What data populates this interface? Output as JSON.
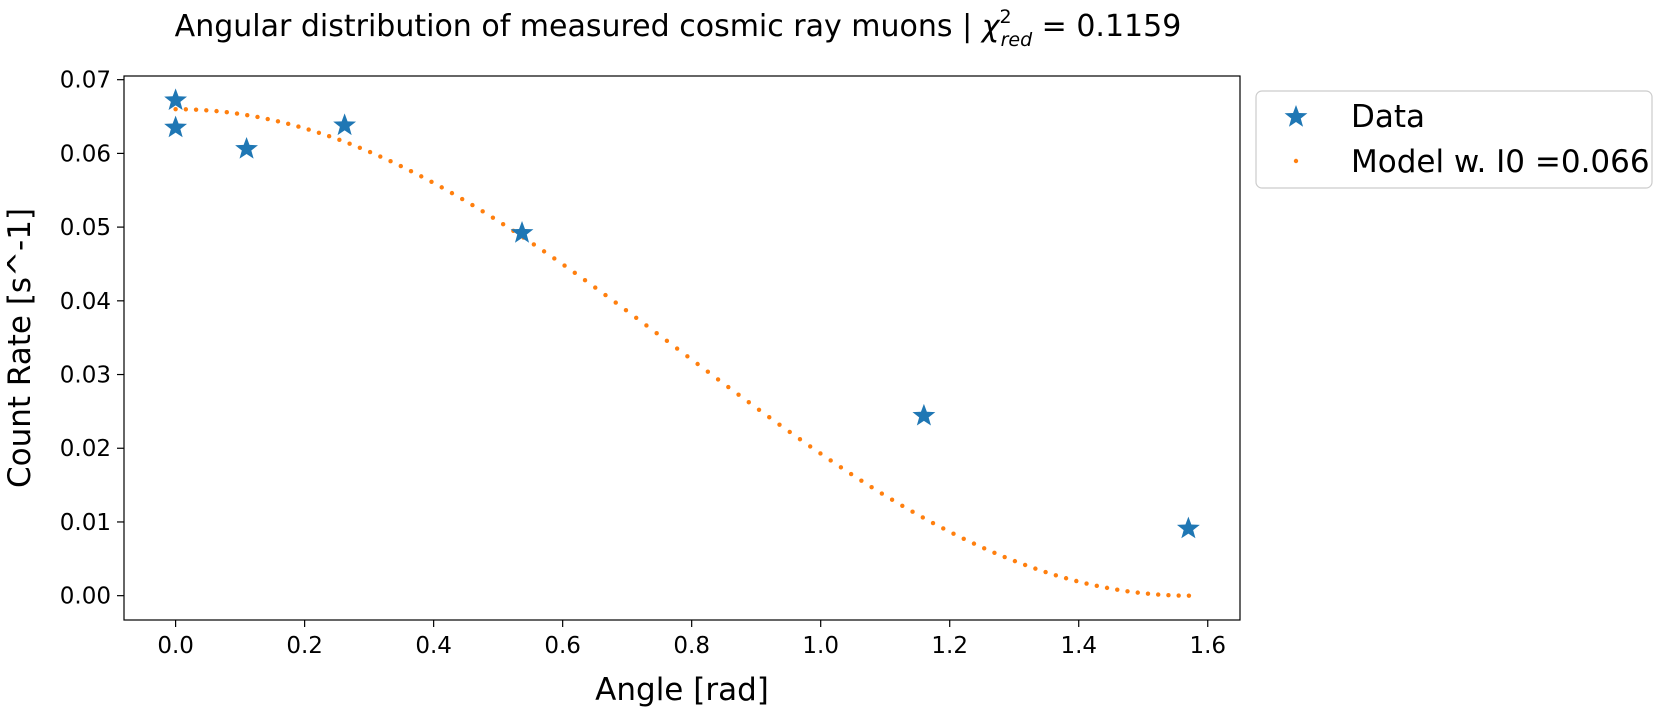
{
  "chart_data": {
    "type": "scatter",
    "title_main": "Angular distribution of measured cosmic ray muons | ",
    "title_chi_symbol": "χ",
    "title_chi_superscript": "2",
    "title_chi_subscript": "red",
    "title_chi_value": " = 0.1159",
    "xlabel": "Angle [rad]",
    "ylabel": "Count Rate [s^-1]",
    "xlim": [
      -0.08,
      1.65
    ],
    "ylim": [
      -0.0033,
      0.0705
    ],
    "xticks": [
      0.0,
      0.2,
      0.4,
      0.6,
      0.8,
      1.0,
      1.2,
      1.4,
      1.6
    ],
    "xtick_labels": [
      "0.0",
      "0.2",
      "0.4",
      "0.6",
      "0.8",
      "1.0",
      "1.2",
      "1.4",
      "1.6"
    ],
    "yticks": [
      0.0,
      0.01,
      0.02,
      0.03,
      0.04,
      0.05,
      0.06,
      0.07
    ],
    "ytick_labels": [
      "0.00",
      "0.01",
      "0.02",
      "0.03",
      "0.04",
      "0.05",
      "0.06",
      "0.07"
    ],
    "grid": false,
    "legend_position": "outside-top-right",
    "series": [
      {
        "name": "Data",
        "marker": "star",
        "color": "#1f77b4",
        "x": [
          0.0,
          0.0,
          0.11,
          0.262,
          0.537,
          1.16,
          1.57
        ],
        "y": [
          0.0672,
          0.0635,
          0.0606,
          0.0638,
          0.0492,
          0.0244,
          0.0091
        ]
      },
      {
        "name": "Model w. I0 =0.066",
        "marker": "dot",
        "color": "#ff7f0e",
        "model": "I0*cos^2(x)",
        "I0": 0.066,
        "x_range": [
          0.0,
          1.5708
        ],
        "n_points": 100
      }
    ]
  }
}
